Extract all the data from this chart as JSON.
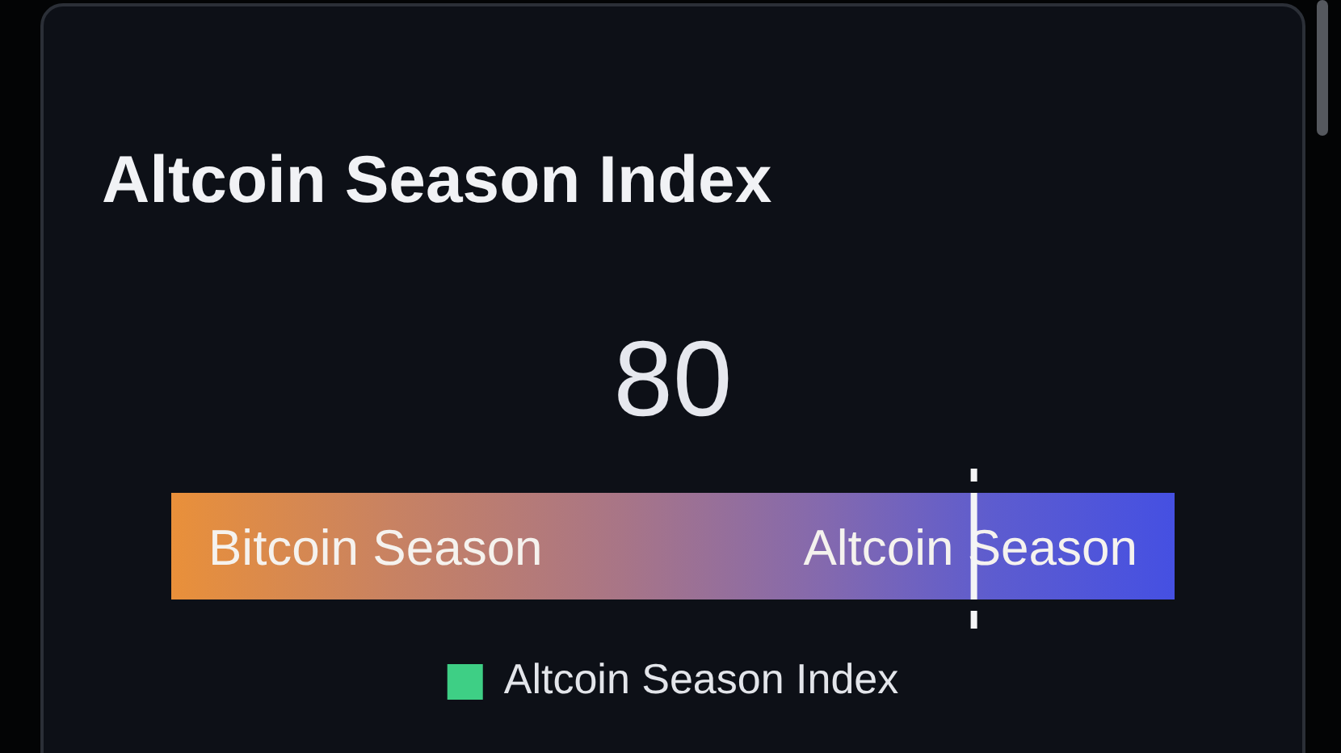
{
  "chart_data": {
    "type": "other",
    "title": "Altcoin Season Index",
    "series": [
      {
        "name": "Altcoin Season Index",
        "color": "#3ecf85",
        "values": [
          80
        ]
      }
    ],
    "data_labels": true,
    "legend": "bottom",
    "annotations": [
      "Bitcoin Season",
      "Altcoin Season"
    ]
  }
}
